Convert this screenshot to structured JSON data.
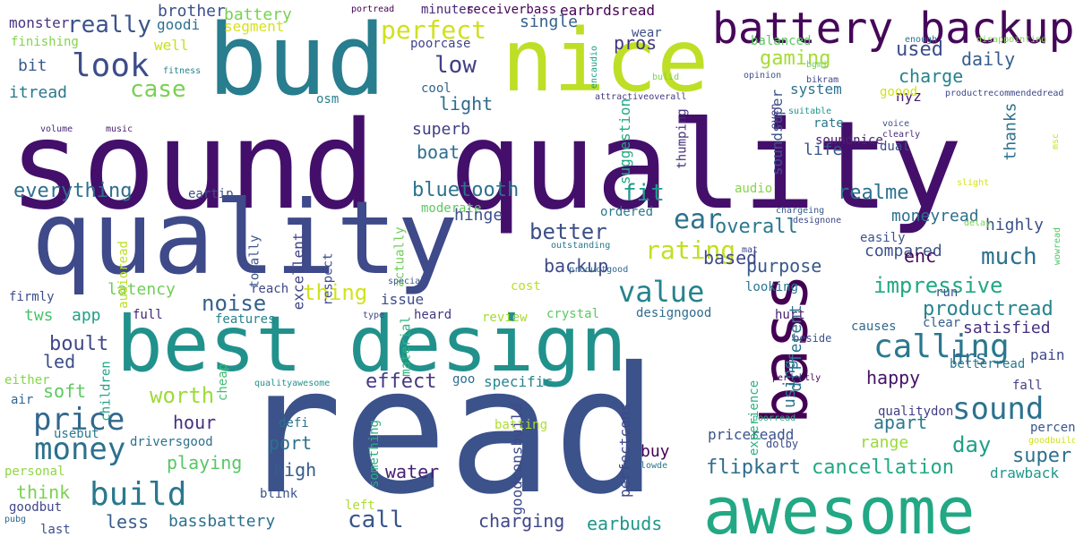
{
  "words": [
    {
      "text": "read",
      "color": "#3b528b"
    },
    {
      "text": "sound quality",
      "color": "#440f6b"
    },
    {
      "text": "quality",
      "color": "#3e4a89"
    },
    {
      "text": "best design",
      "color": "#21918c"
    },
    {
      "text": "bud",
      "color": "#287d8e"
    },
    {
      "text": "nice",
      "color": "#bddf26"
    },
    {
      "text": "awesome",
      "color": "#22a884"
    },
    {
      "text": "bass",
      "color": "#440154"
    },
    {
      "text": "battery backup",
      "color": "#46075a"
    },
    {
      "text": "look",
      "color": "#3d4d8a"
    },
    {
      "text": "calling",
      "color": "#2a788e"
    },
    {
      "text": "sound",
      "color": "#2c728e"
    },
    {
      "text": "price",
      "color": "#31688e"
    },
    {
      "text": "money",
      "color": "#2d708e"
    },
    {
      "text": "build",
      "color": "#2a788e"
    },
    {
      "text": "value",
      "color": "#25838e"
    },
    {
      "text": "rating",
      "color": "#c2df23"
    },
    {
      "text": "ear",
      "color": "#2c728e"
    },
    {
      "text": "really",
      "color": "#3a548c"
    },
    {
      "text": "perfect",
      "color": "#d0e11c"
    },
    {
      "text": "low",
      "color": "#424086"
    },
    {
      "text": "case",
      "color": "#7ad151"
    },
    {
      "text": "everything",
      "color": "#2e6e8e"
    },
    {
      "text": "bluetooth",
      "color": "#2c728e"
    },
    {
      "text": "overall",
      "color": "#2a788e"
    },
    {
      "text": "fit",
      "color": "#1f998a"
    },
    {
      "text": "realme",
      "color": "#2c718e"
    },
    {
      "text": "better",
      "color": "#3c4f8a"
    },
    {
      "text": "gaming",
      "color": "#a5db36"
    },
    {
      "text": "used",
      "color": "#3d4e8a"
    },
    {
      "text": "charge",
      "color": "#26828e"
    },
    {
      "text": "daily",
      "color": "#365d8d"
    },
    {
      "text": "noise",
      "color": "#355f8d"
    },
    {
      "text": "impressive",
      "color": "#22a884"
    },
    {
      "text": "productread",
      "color": "#25848e"
    },
    {
      "text": "much",
      "color": "#2c718e"
    },
    {
      "text": "worth",
      "color": "#9fda3a"
    },
    {
      "text": "effect",
      "color": "#443983"
    },
    {
      "text": "thing",
      "color": "#d2e21b"
    },
    {
      "text": "backup",
      "color": "#3e4989"
    },
    {
      "text": "based",
      "color": "#3e4989"
    },
    {
      "text": "purpose",
      "color": "#38598c"
    },
    {
      "text": "compared",
      "color": "#3b528b"
    },
    {
      "text": "highly",
      "color": "#3c508b"
    },
    {
      "text": "moneyread",
      "color": "#2d708e"
    },
    {
      "text": "hrs",
      "color": "#2e6d8e"
    },
    {
      "text": "happy",
      "color": "#471365"
    },
    {
      "text": "day",
      "color": "#1fa088"
    },
    {
      "text": "apart",
      "color": "#2a788e"
    },
    {
      "text": "range",
      "color": "#9bd93c"
    },
    {
      "text": "super",
      "color": "#2d708e"
    },
    {
      "text": "cancellation",
      "color": "#22a884"
    },
    {
      "text": "flipkart",
      "color": "#2e6d8e"
    },
    {
      "text": "charging",
      "color": "#3f4788"
    },
    {
      "text": "call",
      "color": "#39568c"
    },
    {
      "text": "earbuds",
      "color": "#1f968b"
    },
    {
      "text": "water",
      "color": "#482173"
    },
    {
      "text": "high",
      "color": "#365c8d"
    },
    {
      "text": "playing",
      "color": "#58c765"
    },
    {
      "text": "hour",
      "color": "#46307e"
    },
    {
      "text": "port",
      "color": "#2e6f8e"
    },
    {
      "text": "bassbattery",
      "color": "#2d708e"
    },
    {
      "text": "less",
      "color": "#355e8d"
    },
    {
      "text": "think",
      "color": "#7ad151"
    },
    {
      "text": "soft",
      "color": "#5ec962"
    },
    {
      "text": "led",
      "color": "#3d4d8a"
    },
    {
      "text": "boult",
      "color": "#3f4788"
    },
    {
      "text": "tws",
      "color": "#4ac16d"
    },
    {
      "text": "app",
      "color": "#1fa187"
    },
    {
      "text": "latency",
      "color": "#70cf57"
    },
    {
      "text": "bit",
      "color": "#38598c"
    },
    {
      "text": "itread",
      "color": "#2a788e"
    },
    {
      "text": "superb",
      "color": "#433e85"
    },
    {
      "text": "light",
      "color": "#2f6b8e"
    },
    {
      "text": "boat",
      "color": "#2e6f8e"
    },
    {
      "text": "single",
      "color": "#34608d"
    },
    {
      "text": "pros",
      "color": "#453581"
    },
    {
      "text": "battery",
      "color": "#7ad151"
    },
    {
      "text": "brother",
      "color": "#3b518b"
    },
    {
      "text": "minutes",
      "color": "#482979"
    },
    {
      "text": "receiverbass",
      "color": "#450559"
    },
    {
      "text": "earbrdsread",
      "color": "#440154"
    },
    {
      "text": "monster",
      "color": "#46327e"
    },
    {
      "text": "goodi",
      "color": "#2d708e"
    },
    {
      "text": "finishing",
      "color": "#84d44b"
    },
    {
      "text": "well",
      "color": "#c8e020"
    },
    {
      "text": "segment",
      "color": "#d8e219"
    },
    {
      "text": "poorcase",
      "color": "#404588"
    },
    {
      "text": "wear",
      "color": "#3d4e8a"
    },
    {
      "text": "balanced",
      "color": "#5cc863"
    },
    {
      "text": "system",
      "color": "#2c718e"
    },
    {
      "text": "nyz",
      "color": "#481c6e"
    },
    {
      "text": "goood",
      "color": "#d2e21b"
    },
    {
      "text": "productrecommendedread",
      "color": "#3f4889"
    },
    {
      "text": "cool",
      "color": "#31668e"
    },
    {
      "text": "osm",
      "color": "#27808e"
    },
    {
      "text": "rate",
      "color": "#2a768e"
    },
    {
      "text": "voice",
      "color": "#3b528b"
    },
    {
      "text": "clearly",
      "color": "#472c7a"
    },
    {
      "text": "soundnice",
      "color": "#481f70"
    },
    {
      "text": "dual",
      "color": "#3e4c8a"
    },
    {
      "text": "life",
      "color": "#39568c"
    },
    {
      "text": "thanks",
      "color": "#2c728e"
    },
    {
      "text": "soundsuper",
      "color": "#3b528b"
    },
    {
      "text": "even",
      "color": "#453882"
    },
    {
      "text": "thumping",
      "color": "#46307e"
    },
    {
      "text": "suggestion",
      "color": "#22a884"
    },
    {
      "text": "hinge",
      "color": "#3c4f8a"
    },
    {
      "text": "eartip",
      "color": "#3c4f8a"
    },
    {
      "text": "moderate",
      "color": "#5ec962"
    },
    {
      "text": "ordered",
      "color": "#2a788e"
    },
    {
      "text": "audio",
      "color": "#86d549"
    },
    {
      "text": "enc",
      "color": "#46085c"
    },
    {
      "text": "easily",
      "color": "#3a548c"
    },
    {
      "text": "run",
      "color": "#3b518b"
    },
    {
      "text": "function",
      "color": "#2a778e"
    },
    {
      "text": "satisfied",
      "color": "#46307e"
    },
    {
      "text": "clear",
      "color": "#355e8d"
    },
    {
      "text": "causes",
      "color": "#2f6b8e"
    },
    {
      "text": "beside",
      "color": "#3b518b"
    },
    {
      "text": "pain",
      "color": "#3e4989"
    },
    {
      "text": "betterread",
      "color": "#2a788e"
    },
    {
      "text": "fall",
      "color": "#423f85"
    },
    {
      "text": "qualitydon",
      "color": "#433d84"
    },
    {
      "text": "percentage",
      "color": "#3a548c"
    },
    {
      "text": "drawback",
      "color": "#1f988b"
    },
    {
      "text": "pricereadd",
      "color": "#3b528b"
    },
    {
      "text": "dolby",
      "color": "#3e4a89"
    },
    {
      "text": "buy",
      "color": "#440154"
    },
    {
      "text": "experience",
      "color": "#2ab07f"
    },
    {
      "text": "different",
      "color": "#2a768e"
    },
    {
      "text": "using",
      "color": "#2c728e"
    },
    {
      "text": "hurt",
      "color": "#482071"
    },
    {
      "text": "looking",
      "color": "#2a778e"
    },
    {
      "text": "mat",
      "color": "#3f4889"
    },
    {
      "text": "cost",
      "color": "#b8de29"
    },
    {
      "text": "crystal",
      "color": "#5cc863"
    },
    {
      "text": "designgood",
      "color": "#2f6c8e"
    },
    {
      "text": "review",
      "color": "#a8db34"
    },
    {
      "text": "specific",
      "color": "#25858e"
    },
    {
      "text": "issue",
      "color": "#3e4c8a"
    },
    {
      "text": "heard",
      "color": "#453781"
    },
    {
      "text": "reach",
      "color": "#3f4788"
    },
    {
      "text": "features",
      "color": "#25848e"
    },
    {
      "text": "full",
      "color": "#482173"
    },
    {
      "text": "respect",
      "color": "#3d4d8a"
    },
    {
      "text": "excellent",
      "color": "#404688"
    },
    {
      "text": "totally",
      "color": "#39568c"
    },
    {
      "text": "firmly",
      "color": "#3d4d8a"
    },
    {
      "text": "air",
      "color": "#31668e"
    },
    {
      "text": "either",
      "color": "#86d549"
    },
    {
      "text": "usebut",
      "color": "#2a788e"
    },
    {
      "text": "personal",
      "color": "#8fd744"
    },
    {
      "text": "goodbut",
      "color": "#3f4788"
    },
    {
      "text": "last",
      "color": "#3b518b"
    },
    {
      "text": "driversgood",
      "color": "#2d708e"
    },
    {
      "text": "blink",
      "color": "#3b528b"
    },
    {
      "text": "left",
      "color": "#addc30"
    },
    {
      "text": "batting",
      "color": "#b0dd2f"
    },
    {
      "text": "goodconsbuild",
      "color": "#3e4a89"
    },
    {
      "text": "perfectcons",
      "color": "#3f4788"
    },
    {
      "text": "something",
      "color": "#29af7f"
    },
    {
      "text": "material",
      "color": "#2db27d"
    },
    {
      "text": "actually",
      "color": "#6ece58"
    },
    {
      "text": "defi",
      "color": "#2d708e"
    },
    {
      "text": "goo",
      "color": "#2e6d8e"
    },
    {
      "text": "cheap",
      "color": "#3fbc73"
    },
    {
      "text": "children",
      "color": "#1fa187"
    },
    {
      "text": "audioread",
      "color": "#bddf26"
    },
    {
      "text": "music",
      "color": "#481a6c"
    },
    {
      "text": "volume",
      "color": "#482979"
    },
    {
      "text": "fitness",
      "color": "#25848e"
    },
    {
      "text": "portread",
      "color": "#440154"
    },
    {
      "text": "encaudio",
      "color": "#1fa088"
    },
    {
      "text": "bulid",
      "color": "#7ad151"
    },
    {
      "text": "opinion",
      "color": "#3b528b"
    },
    {
      "text": "bgmi",
      "color": "#6ece58"
    },
    {
      "text": "bikram",
      "color": "#3f4788"
    },
    {
      "text": "enough",
      "color": "#2c718e"
    },
    {
      "text": "disappointing",
      "color": "#7fd34e"
    },
    {
      "text": "attractiveoverall",
      "color": "#453882"
    },
    {
      "text": "suitable",
      "color": "#1f958b"
    },
    {
      "text": "msc",
      "color": "#c8e020"
    },
    {
      "text": "slight",
      "color": "#d8e219"
    },
    {
      "text": "delay",
      "color": "#7ad151"
    },
    {
      "text": "wowread",
      "color": "#52c569"
    },
    {
      "text": "chargeing",
      "color": "#38598c"
    },
    {
      "text": "designone",
      "color": "#3e4a89"
    },
    {
      "text": "outstanding",
      "color": "#2a788e"
    },
    {
      "text": "productgood",
      "color": "#31688e"
    },
    {
      "text": "special",
      "color": "#3b528b"
    },
    {
      "text": "type",
      "color": "#3d4d8a"
    },
    {
      "text": "qualityawesome",
      "color": "#21918c"
    },
    {
      "text": "perfectly",
      "color": "#440154"
    },
    {
      "text": "poorread",
      "color": "#27ad81"
    },
    {
      "text": "goodbuild",
      "color": "#d0e11c"
    },
    {
      "text": "lowde",
      "color": "#2a788e"
    },
    {
      "text": "pubg",
      "color": "#31668e"
    }
  ]
}
